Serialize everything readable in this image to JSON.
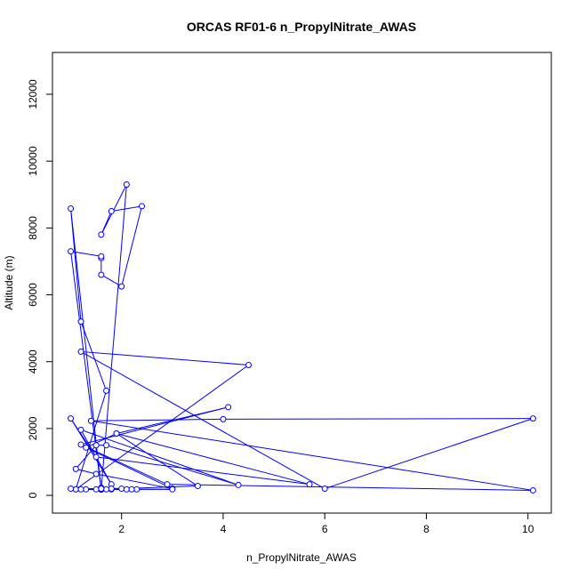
{
  "chart_data": {
    "type": "line",
    "title": "ORCAS RF01-6 n_PropylNitrate_AWAS",
    "xlabel": "n_PropylNitrate_AWAS",
    "ylabel": "Altitude (m)",
    "xlim": [
      0.64,
      10.46
    ],
    "ylim": [
      -530,
      13250
    ],
    "xticks": [
      2,
      4,
      6,
      8,
      10
    ],
    "yticks": [
      0,
      2000,
      4000,
      6000,
      8000,
      10000,
      12000
    ],
    "marker": "open-circle",
    "color": "#0000ff",
    "grid": false,
    "legend": "none",
    "x": [
      1.6,
      2.1,
      1.6,
      1.8,
      2.4,
      2.0,
      1.6,
      1.6,
      1.6,
      1.0,
      1.6,
      1.0,
      1.2,
      1.7,
      1.1,
      4.5,
      1.2,
      6.0,
      10.1,
      4.0,
      1.4,
      10.1,
      2.9,
      1.2,
      4.1,
      1.9,
      1.3,
      3.0,
      1.5,
      1.1,
      1.5,
      1.7,
      4.3,
      1.2,
      1.8,
      1.0,
      1.5,
      5.7,
      1.9,
      3.5,
      1.6,
      2.0,
      1.6,
      1.3,
      2.1,
      1.8,
      2.2,
      1.7,
      1.1,
      3.0,
      1.2,
      2.3,
      1.5,
      1.0,
      1.6,
      1.8
    ],
    "y": [
      180,
      9300,
      7800,
      8500,
      8650,
      6250,
      6600,
      7100,
      7150,
      7300,
      170,
      8580,
      5200,
      3130,
      180,
      3900,
      4300,
      200,
      2300,
      2280,
      2230,
      150,
      330,
      1520,
      2640,
      1850,
      1430,
      200,
      640,
      790,
      1500,
      1500,
      310,
      1960,
      330,
      2300,
      1150,
      330,
      1850,
      280,
      180,
      200,
      230,
      180,
      180,
      180,
      180,
      180,
      180,
      180,
      180,
      180,
      180,
      200,
      200,
      200
    ]
  }
}
